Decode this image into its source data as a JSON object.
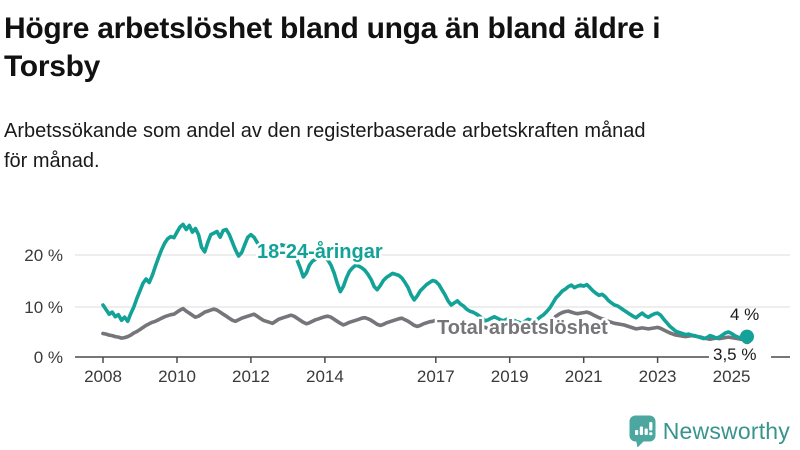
{
  "title": {
    "line1": "Högre arbetslöshet bland unga än bland äldre i",
    "line2": "Torsby"
  },
  "subtitle": {
    "line1": "Arbetssökande som andel av den registerbaserade arbetskraften månad",
    "line2": "för månad."
  },
  "branding": {
    "logo_text": "Newsworthy",
    "brand_color": "#4ba7a0"
  },
  "chart_data": {
    "type": "line",
    "title": "Högre arbetslöshet bland unga än bland äldre i Torsby",
    "subtitle": "Arbetssökande som andel av den registerbaserade arbetskraften månad för månad.",
    "x_start": "2008-01",
    "x_end": "2025-06",
    "x_ticks": [
      2008,
      2010,
      2012,
      2014,
      2017,
      2019,
      2021,
      2023,
      2025
    ],
    "y_tick_labels": [
      "0 %",
      "10 %",
      "20 %"
    ],
    "ylim": [
      0,
      27
    ],
    "unit": "%",
    "grid": "horizontal",
    "legend_position": "inline-labels",
    "series": [
      {
        "name": "18-24-åringar",
        "color": "#13a297",
        "end_label": "4 %",
        "values": [
          10.2,
          9.3,
          8.4,
          8.8,
          7.9,
          8.3,
          7.2,
          7.8,
          7.0,
          8.5,
          9.8,
          11.5,
          13.0,
          14.5,
          15.3,
          14.6,
          16.0,
          17.8,
          19.5,
          21.0,
          22.3,
          23.2,
          23.6,
          23.4,
          24.5,
          25.5,
          26.0,
          25.0,
          25.8,
          24.5,
          25.2,
          24.0,
          21.5,
          20.6,
          22.5,
          24.0,
          24.3,
          24.6,
          23.5,
          24.8,
          25.0,
          24.0,
          22.5,
          21.0,
          19.8,
          20.5,
          22.0,
          23.5,
          24.0,
          23.5,
          22.5,
          21.5,
          22.0,
          21.0,
          19.5,
          20.0,
          21.0,
          21.5,
          22.0,
          21.8,
          22.0,
          21.5,
          20.5,
          19.0,
          17.5,
          15.7,
          16.5,
          18.0,
          18.8,
          19.2,
          19.5,
          19.8,
          19.5,
          19.0,
          18.0,
          16.5,
          14.5,
          12.8,
          13.8,
          15.5,
          16.8,
          17.5,
          18.0,
          17.8,
          17.5,
          17.0,
          16.2,
          15.2,
          13.8,
          13.2,
          14.0,
          15.0,
          15.6,
          16.0,
          16.4,
          16.2,
          16.0,
          15.5,
          14.6,
          13.6,
          12.2,
          11.2,
          12.0,
          13.0,
          13.6,
          14.2,
          14.6,
          15.0,
          14.8,
          14.2,
          13.2,
          12.2,
          11.0,
          10.2,
          10.6,
          11.0,
          10.4,
          10.0,
          9.4,
          9.0,
          8.8,
          8.5,
          8.1,
          7.6,
          7.1,
          7.3,
          7.6,
          7.9,
          7.6,
          7.3,
          7.1,
          7.4,
          7.6,
          7.3,
          7.0,
          6.8,
          6.5,
          7.0,
          7.4,
          7.2,
          7.0,
          7.4,
          7.9,
          8.3,
          8.9,
          9.6,
          10.6,
          11.6,
          12.2,
          12.9,
          13.3,
          13.8,
          14.1,
          13.6,
          13.9,
          14.1,
          13.9,
          14.2,
          13.6,
          13.0,
          12.5,
          12.1,
          12.3,
          11.8,
          11.1,
          10.6,
          10.2,
          10.0,
          9.6,
          9.2,
          8.8,
          8.4,
          8.0,
          7.7,
          8.2,
          8.6,
          8.1,
          7.8,
          8.2,
          8.5,
          8.6,
          8.2,
          7.4,
          6.7,
          6.0,
          5.5,
          5.0,
          4.8,
          4.6,
          4.4,
          4.5,
          4.3,
          4.2,
          4.0,
          3.8,
          3.6,
          3.8,
          4.2,
          4.0,
          3.7,
          3.9,
          4.3,
          4.7,
          4.9,
          4.6,
          4.2,
          3.9,
          3.8,
          4.0,
          4.0
        ]
      },
      {
        "name": "Total arbetslöshet",
        "color": "#75757a",
        "end_label": "3,5 %",
        "values": [
          4.6,
          4.5,
          4.3,
          4.2,
          4.0,
          3.9,
          3.7,
          3.8,
          4.0,
          4.3,
          4.7,
          5.0,
          5.4,
          5.8,
          6.2,
          6.5,
          6.8,
          7.0,
          7.3,
          7.6,
          7.9,
          8.1,
          8.3,
          8.4,
          8.8,
          9.2,
          9.5,
          9.0,
          8.6,
          8.2,
          7.8,
          8.0,
          8.4,
          8.8,
          9.0,
          9.2,
          9.4,
          9.2,
          8.8,
          8.4,
          8.0,
          7.6,
          7.2,
          7.0,
          7.3,
          7.6,
          7.8,
          8.0,
          8.2,
          8.4,
          8.0,
          7.6,
          7.2,
          7.0,
          6.8,
          6.6,
          7.0,
          7.4,
          7.6,
          7.8,
          8.0,
          8.2,
          8.0,
          7.6,
          7.2,
          6.8,
          6.5,
          6.7,
          7.0,
          7.3,
          7.5,
          7.7,
          7.9,
          8.0,
          7.8,
          7.4,
          7.0,
          6.6,
          6.3,
          6.5,
          6.8,
          7.0,
          7.2,
          7.4,
          7.6,
          7.7,
          7.5,
          7.2,
          6.8,
          6.4,
          6.2,
          6.4,
          6.7,
          6.9,
          7.1,
          7.3,
          7.5,
          7.6,
          7.3,
          7.0,
          6.6,
          6.2,
          6.0,
          6.2,
          6.5,
          6.7,
          6.9,
          7.0,
          7.2,
          7.1,
          6.9,
          6.6,
          6.3,
          6.0,
          5.8,
          6.0,
          6.2,
          6.3,
          6.4,
          6.5,
          6.6,
          6.5,
          6.3,
          6.0,
          5.8,
          5.6,
          5.5,
          5.6,
          5.8,
          5.9,
          6.0,
          6.1,
          6.2,
          6.1,
          6.0,
          5.8,
          5.6,
          5.5,
          5.6,
          5.7,
          5.8,
          5.9,
          6.0,
          6.2,
          6.5,
          6.8,
          7.4,
          8.0,
          8.4,
          8.7,
          8.9,
          9.0,
          8.8,
          8.6,
          8.5,
          8.6,
          8.7,
          8.8,
          8.6,
          8.3,
          8.0,
          7.7,
          7.5,
          7.3,
          7.0,
          6.8,
          6.6,
          6.5,
          6.4,
          6.3,
          6.1,
          5.9,
          5.7,
          5.5,
          5.6,
          5.7,
          5.6,
          5.5,
          5.6,
          5.7,
          5.8,
          5.6,
          5.3,
          5.0,
          4.7,
          4.5,
          4.3,
          4.2,
          4.1,
          4.0,
          4.1,
          4.2,
          4.1,
          4.0,
          3.9,
          3.7,
          3.6,
          3.5,
          3.6,
          3.7,
          3.6,
          3.7,
          3.8,
          3.9,
          3.8,
          3.7,
          3.6,
          3.5,
          3.5,
          3.5
        ]
      }
    ]
  }
}
